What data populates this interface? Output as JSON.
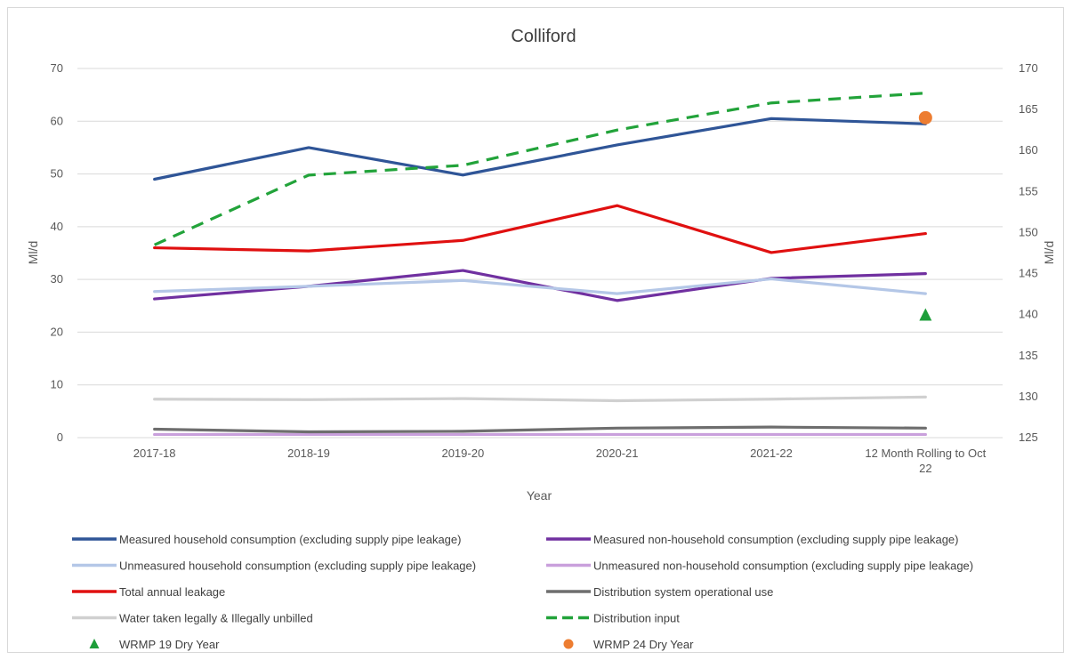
{
  "chart_data": {
    "type": "line",
    "title": "Colliford",
    "xlabel": "Year",
    "ylabel": "Ml/d",
    "y2label": "Ml/d",
    "categories": [
      "2017-18",
      "2018-19",
      "2019-20",
      "2020-21",
      "2021-22",
      "12 Month Rolling to Oct 22"
    ],
    "category_lines": [
      [
        "2017-18"
      ],
      [
        "2018-19"
      ],
      [
        "2019-20"
      ],
      [
        "2020-21"
      ],
      [
        "2021-22"
      ],
      [
        "12 Month Rolling to Oct",
        "22"
      ]
    ],
    "ylim": [
      0,
      70
    ],
    "yticks": [
      0,
      10,
      20,
      30,
      40,
      50,
      60,
      70
    ],
    "y2lim": [
      125,
      170
    ],
    "y2ticks": [
      125,
      130,
      135,
      140,
      145,
      150,
      155,
      160,
      165,
      170
    ],
    "grid": true,
    "legend_position": "bottom",
    "series": [
      {
        "name": "Measured household consumption (excluding supply pipe leakage)",
        "axis": "left",
        "color": "#2f5597",
        "dash": "solid",
        "values": [
          49.0,
          55.0,
          49.8,
          55.5,
          60.5,
          59.5
        ]
      },
      {
        "name": "Measured non-household consumption (excluding supply pipe leakage)",
        "axis": "left",
        "color": "#7030a0",
        "dash": "solid",
        "values": [
          26.3,
          28.7,
          31.7,
          26.0,
          30.2,
          31.1
        ]
      },
      {
        "name": "Unmeasured household consumption (excluding supply pipe leakage)",
        "axis": "left",
        "color": "#b4c7e7",
        "dash": "solid",
        "values": [
          27.7,
          28.7,
          29.8,
          27.3,
          30.1,
          27.3
        ]
      },
      {
        "name": "Unmeasured non-household consumption (excluding supply pipe leakage)",
        "axis": "left",
        "color": "#c9a0dc",
        "dash": "solid",
        "values": [
          0.6,
          0.6,
          0.6,
          0.6,
          0.6,
          0.6
        ]
      },
      {
        "name": "Total annual leakage",
        "axis": "left",
        "color": "#e01010",
        "dash": "solid",
        "values": [
          36.0,
          35.4,
          37.4,
          44.0,
          35.1,
          38.7
        ]
      },
      {
        "name": "Distribution system operational use",
        "axis": "left",
        "color": "#6e6e6e",
        "dash": "solid",
        "values": [
          1.6,
          1.1,
          1.2,
          1.8,
          2.0,
          1.8
        ]
      },
      {
        "name": "Water taken legally & Illegally unbilled",
        "axis": "left",
        "color": "#d0d0d0",
        "dash": "solid",
        "values": [
          7.3,
          7.2,
          7.4,
          7.0,
          7.3,
          7.7
        ]
      },
      {
        "name": "Distribution input",
        "axis": "right",
        "color": "#22a33a",
        "dash": "dashed",
        "values": [
          148.5,
          157.0,
          158.2,
          162.5,
          165.8,
          167.0
        ]
      }
    ],
    "markers": [
      {
        "name": "WRMP 19 Dry Year",
        "axis": "left",
        "category_index": 5,
        "value": 23.2,
        "shape": "triangle",
        "color": "#1e9e3a"
      },
      {
        "name": "WRMP 24 Dry Year",
        "axis": "right",
        "category_index": 5,
        "value": 164.0,
        "shape": "circle",
        "color": "#ed7d31"
      }
    ]
  }
}
